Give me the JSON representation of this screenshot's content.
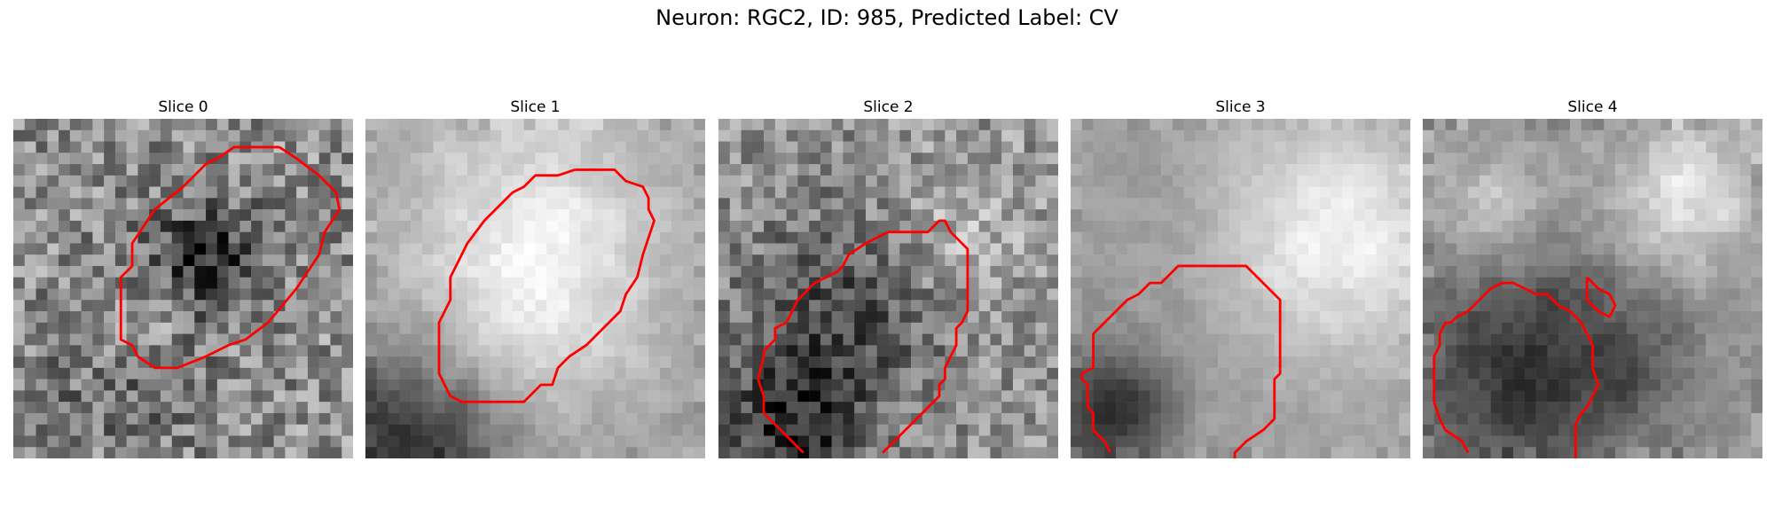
{
  "figure": {
    "title": "Neuron: RGC2, ID: 985, Predicted Label: CV"
  },
  "panels": [
    {
      "label": "Slice 0",
      "seed": 11,
      "blobs": [
        [
          0.55,
          0.4,
          0.12,
          -95
        ],
        [
          0.3,
          0.75,
          0.15,
          -40
        ],
        [
          0.35,
          0.6,
          0.1,
          45
        ]
      ],
      "noise": 60,
      "base": 140,
      "smooth": 0,
      "contour": [
        [
          23.5,
          2.5
        ],
        [
          25,
          3.5
        ],
        [
          27,
          5
        ],
        [
          28.5,
          6.5
        ],
        [
          28.8,
          8
        ],
        [
          27.5,
          10
        ],
        [
          27,
          12
        ],
        [
          25,
          15
        ],
        [
          22.5,
          18
        ],
        [
          20.5,
          19.5
        ],
        [
          19,
          20
        ],
        [
          17,
          21
        ],
        [
          14.5,
          22
        ],
        [
          12.5,
          22
        ],
        [
          11,
          21
        ],
        [
          10.5,
          20
        ],
        [
          9.5,
          19.5
        ],
        [
          9.5,
          18
        ],
        [
          9.5,
          16
        ],
        [
          9.5,
          14
        ],
        [
          10.5,
          13
        ],
        [
          10.5,
          11
        ],
        [
          11.5,
          9.5
        ],
        [
          12.5,
          8
        ],
        [
          15,
          6
        ],
        [
          17,
          4
        ],
        [
          18,
          3.5
        ],
        [
          19.5,
          2.5
        ],
        [
          21.5,
          2.5
        ],
        [
          23.5,
          2.5
        ]
      ]
    },
    {
      "label": "Slice 1",
      "seed": 23,
      "blobs": [
        [
          0.48,
          0.47,
          0.28,
          85
        ],
        [
          0.1,
          0.95,
          0.2,
          -110
        ],
        [
          0.5,
          0.05,
          0.3,
          30
        ]
      ],
      "noise": 28,
      "base": 150,
      "smooth": 1,
      "contour": [
        [
          18.5,
          4.5
        ],
        [
          22,
          4.5
        ],
        [
          23,
          5.5
        ],
        [
          24.5,
          6
        ],
        [
          25,
          7
        ],
        [
          25,
          8
        ],
        [
          25.5,
          9
        ],
        [
          25,
          10.5
        ],
        [
          24.5,
          12
        ],
        [
          24,
          14
        ],
        [
          23,
          15.5
        ],
        [
          22.5,
          17
        ],
        [
          21,
          18.5
        ],
        [
          19.5,
          20
        ],
        [
          18,
          21
        ],
        [
          17,
          22
        ],
        [
          16.5,
          23.5
        ],
        [
          15.5,
          23.5
        ],
        [
          14,
          25
        ],
        [
          11.5,
          25
        ],
        [
          9.5,
          25
        ],
        [
          8.5,
          25
        ],
        [
          7.5,
          24.5
        ],
        [
          7,
          23.5
        ],
        [
          6.5,
          22.5
        ],
        [
          6.5,
          20
        ],
        [
          6.5,
          18
        ],
        [
          7,
          17
        ],
        [
          7.5,
          16
        ],
        [
          7.5,
          14
        ],
        [
          8,
          13
        ],
        [
          8.5,
          12
        ],
        [
          9,
          11
        ],
        [
          10.5,
          9
        ],
        [
          11.5,
          8
        ],
        [
          13,
          6.5
        ],
        [
          14,
          6
        ],
        [
          15,
          5
        ],
        [
          17,
          5
        ],
        [
          18.5,
          4.5
        ]
      ]
    },
    {
      "label": "Slice 2",
      "seed": 37,
      "blobs": [
        [
          0.35,
          0.55,
          0.2,
          -70
        ],
        [
          0.2,
          0.9,
          0.15,
          -100
        ],
        [
          0.7,
          0.3,
          0.15,
          40
        ]
      ],
      "noise": 50,
      "base": 145,
      "smooth": 0,
      "contour": [
        [
          7.5,
          29.5
        ],
        [
          6,
          28
        ],
        [
          4,
          26
        ],
        [
          4,
          24.5
        ],
        [
          3.5,
          23
        ],
        [
          4,
          21
        ],
        [
          4,
          20.5
        ],
        [
          5,
          19.5
        ],
        [
          5,
          18.5
        ],
        [
          6,
          18
        ],
        [
          6.5,
          17
        ],
        [
          7,
          16
        ],
        [
          8.5,
          14.5
        ],
        [
          9.5,
          14
        ],
        [
          10.5,
          13.5
        ],
        [
          11,
          13
        ],
        [
          11.5,
          12
        ],
        [
          13,
          11
        ],
        [
          14,
          10.5
        ],
        [
          15,
          10
        ],
        [
          16,
          10
        ],
        [
          17,
          10
        ],
        [
          18.5,
          10
        ],
        [
          19,
          9.5
        ],
        [
          19.5,
          9
        ],
        [
          20,
          9
        ],
        [
          20.5,
          10
        ],
        [
          22,
          11.5
        ],
        [
          22,
          13
        ],
        [
          22,
          15
        ],
        [
          22,
          17
        ],
        [
          21.5,
          18
        ],
        [
          21,
          18.5
        ],
        [
          21,
          20
        ],
        [
          20.5,
          21
        ],
        [
          20,
          22
        ],
        [
          20,
          23
        ],
        [
          19.5,
          23.5
        ],
        [
          19.5,
          24.5
        ],
        [
          18.5,
          25.5
        ],
        [
          17,
          27
        ],
        [
          15.5,
          28.5
        ],
        [
          14.5,
          29.5
        ]
      ]
    },
    {
      "label": "Slice 3",
      "seed": 41,
      "blobs": [
        [
          0.75,
          0.35,
          0.25,
          90
        ],
        [
          0.1,
          0.85,
          0.12,
          -120
        ],
        [
          0.45,
          0.5,
          0.3,
          -15
        ]
      ],
      "noise": 22,
      "base": 160,
      "smooth": 1,
      "contour": [
        [
          3.5,
          29.5
        ],
        [
          3,
          28.5
        ],
        [
          2,
          27.5
        ],
        [
          2,
          26
        ],
        [
          1.5,
          25.5
        ],
        [
          1.5,
          23.5
        ],
        [
          1,
          23
        ],
        [
          1,
          22.5
        ],
        [
          2,
          22
        ],
        [
          2,
          20.5
        ],
        [
          2,
          19
        ],
        [
          3,
          18
        ],
        [
          4,
          17
        ],
        [
          5,
          16
        ],
        [
          6,
          15.5
        ],
        [
          6.5,
          15
        ],
        [
          7,
          14.5
        ],
        [
          8,
          14.5
        ],
        [
          8.5,
          14
        ],
        [
          9.5,
          13
        ],
        [
          10.5,
          13
        ],
        [
          11,
          13
        ],
        [
          12,
          13
        ],
        [
          14,
          13
        ],
        [
          15.5,
          13
        ],
        [
          17.5,
          15
        ],
        [
          18.5,
          16
        ],
        [
          18.5,
          18
        ],
        [
          18.5,
          20
        ],
        [
          18.5,
          22.5
        ],
        [
          18,
          23
        ],
        [
          18,
          24.5
        ],
        [
          18,
          26.5
        ],
        [
          17,
          27.5
        ],
        [
          15.5,
          28.5
        ],
        [
          14.5,
          29.5
        ],
        [
          14.5,
          30
        ]
      ]
    },
    {
      "label": "Slice 4",
      "seed": 53,
      "blobs": [
        [
          0.3,
          0.72,
          0.25,
          -100
        ],
        [
          0.75,
          0.2,
          0.15,
          80
        ],
        [
          0.2,
          0.25,
          0.12,
          60
        ],
        [
          0.62,
          0.7,
          0.1,
          -30
        ]
      ],
      "noise": 35,
      "base": 150,
      "smooth": 1,
      "contour": [
        [
          4,
          29.5
        ],
        [
          3.5,
          28.5
        ],
        [
          2,
          27.5
        ],
        [
          1.5,
          26.5
        ],
        [
          1,
          25
        ],
        [
          1,
          23
        ],
        [
          1,
          21
        ],
        [
          1.5,
          20
        ],
        [
          1.5,
          19
        ],
        [
          2,
          18
        ],
        [
          2.5,
          18
        ],
        [
          3,
          17.5
        ],
        [
          4,
          17
        ],
        [
          4.5,
          16.5
        ],
        [
          5.5,
          15.5
        ],
        [
          6,
          15
        ],
        [
          7,
          14.5
        ],
        [
          8,
          14.5
        ],
        [
          9,
          15
        ],
        [
          10,
          15.5
        ],
        [
          11,
          15.5
        ],
        [
          12,
          16.5
        ],
        [
          13,
          17
        ],
        [
          14,
          18
        ],
        [
          14.5,
          19
        ],
        [
          15,
          20
        ],
        [
          15,
          22
        ],
        [
          15.5,
          23.5
        ],
        [
          15,
          24.5
        ],
        [
          14.5,
          25.5
        ],
        [
          14,
          26
        ],
        [
          13.5,
          27
        ],
        [
          13.5,
          28.5
        ],
        [
          13.5,
          29.5
        ],
        [
          13.5,
          30
        ]
      ],
      "contour2": [
        [
          14.5,
          14
        ],
        [
          15.5,
          15
        ],
        [
          16.5,
          15.5
        ],
        [
          17,
          16.5
        ],
        [
          16.5,
          17.5
        ],
        [
          15.5,
          17
        ],
        [
          15,
          16.5
        ],
        [
          14.5,
          16
        ],
        [
          14.5,
          14.5
        ],
        [
          14.5,
          14
        ]
      ]
    }
  ]
}
